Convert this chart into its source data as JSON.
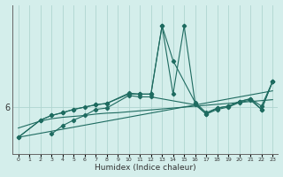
{
  "xlabel": "Humidex (Indice chaleur)",
  "background_color": "#d4eeeb",
  "line_color": "#1e6b60",
  "grid_color": "#b0d5d0",
  "xlim": [
    -0.5,
    23.5
  ],
  "ylim": [
    5.0,
    8.2
  ],
  "y6_label": "6",
  "lines": [
    {
      "x": [
        0,
        23
      ],
      "y": [
        5.35,
        6.35
      ],
      "has_markers": false
    },
    {
      "x": [
        0,
        2,
        3,
        4,
        5,
        6,
        7,
        8,
        9,
        10,
        11,
        12,
        13,
        14,
        15,
        16,
        17,
        18,
        19,
        20,
        21,
        22,
        23
      ],
      "y": [
        5.55,
        5.7,
        5.75,
        5.78,
        5.8,
        5.82,
        5.85,
        5.87,
        5.88,
        5.9,
        5.92,
        5.94,
        5.96,
        5.98,
        6.0,
        6.02,
        6.04,
        6.06,
        6.08,
        6.1,
        6.12,
        6.14,
        6.16
      ],
      "has_markers": false
    },
    {
      "x": [
        0,
        2,
        3,
        4,
        5,
        7,
        8,
        10,
        11,
        12,
        13,
        14,
        16,
        17,
        18,
        19,
        20,
        21,
        22,
        23
      ],
      "y": [
        5.35,
        5.72,
        5.82,
        5.88,
        5.95,
        6.05,
        6.08,
        6.3,
        6.28,
        6.28,
        7.75,
        7.0,
        6.1,
        5.88,
        5.98,
        6.02,
        6.12,
        6.18,
        6.02,
        6.55
      ],
      "has_markers": true
    },
    {
      "x": [
        0,
        2,
        3,
        4,
        5,
        6,
        7,
        8,
        10,
        11,
        12,
        13,
        14,
        15,
        16,
        17,
        18,
        19,
        20,
        21,
        22,
        23
      ],
      "y": [
        5.35,
        5.72,
        5.82,
        5.88,
        5.95,
        6.0,
        6.05,
        6.08,
        6.28,
        6.28,
        6.28,
        7.75,
        6.28,
        7.75,
        6.08,
        5.85,
        5.98,
        6.02,
        6.12,
        6.18,
        5.95,
        6.55
      ],
      "has_markers": true
    },
    {
      "x": [
        3,
        4,
        5,
        6,
        7,
        8,
        10,
        11,
        12,
        16,
        17,
        18,
        19,
        20,
        21,
        22,
        23
      ],
      "y": [
        5.42,
        5.6,
        5.72,
        5.82,
        5.95,
        5.98,
        6.25,
        6.22,
        6.22,
        6.05,
        5.85,
        5.95,
        6.0,
        6.1,
        6.15,
        5.95,
        6.55
      ],
      "has_markers": true
    }
  ]
}
